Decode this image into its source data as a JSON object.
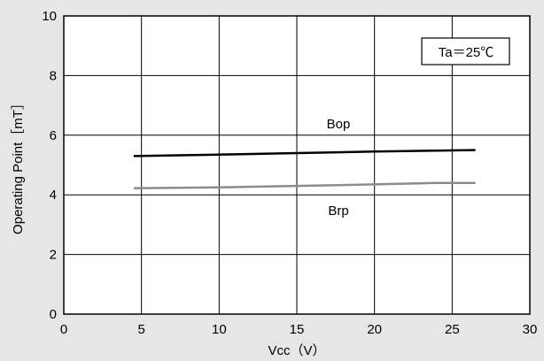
{
  "chart_data": {
    "type": "line",
    "xlabel": "Vcc（V）",
    "ylabel": "Operating Point［mT］",
    "xlim": [
      0,
      30
    ],
    "ylim": [
      0,
      10
    ],
    "xticks": [
      0,
      5,
      10,
      15,
      20,
      25,
      30
    ],
    "yticks": [
      0,
      2,
      4,
      6,
      8,
      10
    ],
    "grid": true,
    "annotation": "Ta＝25℃",
    "series": [
      {
        "name": "Bop",
        "color": "#000000",
        "x": [
          4.5,
          10,
          15,
          20,
          26.5
        ],
        "y": [
          5.3,
          5.35,
          5.4,
          5.45,
          5.5
        ]
      },
      {
        "name": "Brp",
        "color": "#8c8c8c",
        "x": [
          4.5,
          10,
          15,
          20,
          24,
          26.5
        ],
        "y": [
          4.22,
          4.25,
          4.3,
          4.35,
          4.4,
          4.4
        ]
      }
    ]
  }
}
